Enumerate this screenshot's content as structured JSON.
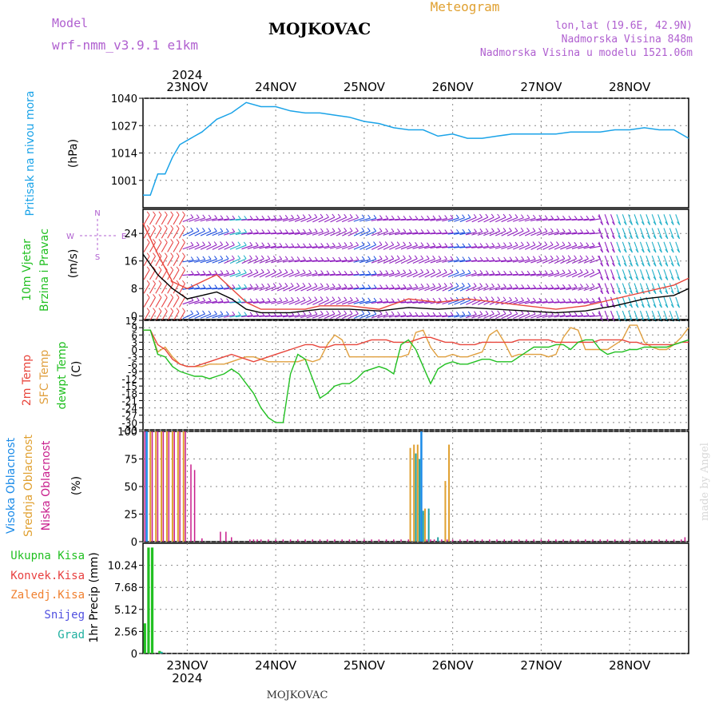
{
  "header": {
    "model_label": "Model",
    "model_name": "wrf-nmm_v3.9.1  e1km",
    "station": "MOJKOVAC",
    "product": "Meteogram",
    "coords": "lon,lat (19.6E, 42.9N)",
    "elevation": "Nadmorska Visina 848m",
    "model_elevation": "Nadmorska Visina u modelu 1521.06m"
  },
  "footer": {
    "station": "MOJKOVAC",
    "watermark": "made by Angel"
  },
  "colors": {
    "pressure": "#1aa3e8",
    "temp": "#e8463c",
    "sfc": "#e0a040",
    "dew": "#22c022",
    "high_cloud": "#1a8ae8",
    "mid_cloud": "#e0a030",
    "low_cloud": "#c81e8c",
    "label_purple": "#b060d0",
    "wind_purple": "#9020c0",
    "wind_blue": "#2050e0",
    "wind_cyan": "#20b0c8"
  },
  "chart_data": [
    {
      "id": "pressure",
      "type": "line",
      "title_labels": [
        "Pritisak na nivou mora"
      ],
      "ylabel": "(hPa)",
      "ylim": [
        988,
        1040
      ],
      "yticks": [
        "1040",
        "1027",
        "1014",
        "1001"
      ],
      "x_ticks": [
        "23NOV",
        "24NOV",
        "25NOV",
        "26NOV",
        "27NOV",
        "28NOV"
      ],
      "x_year": "2024",
      "x_unit": "hours since 22NOV 12:00",
      "x": [
        0,
        2,
        4,
        6,
        8,
        10,
        12,
        14,
        16,
        18,
        20,
        24,
        28,
        32,
        36,
        40,
        44,
        48,
        52,
        56,
        60,
        64,
        68,
        72,
        76,
        80,
        84,
        88,
        92,
        96,
        100,
        104,
        108,
        112,
        116,
        120,
        124,
        128,
        132,
        136,
        140,
        144,
        148
      ],
      "series": [
        {
          "values": [
            994,
            994,
            1004,
            1004,
            1012,
            1018,
            1020,
            1022,
            1024,
            1027,
            1030,
            1033,
            1038,
            1036,
            1036,
            1034,
            1033,
            1033,
            1032,
            1031,
            1029,
            1028,
            1026,
            1025,
            1025,
            1022,
            1023,
            1021,
            1021,
            1022,
            1023,
            1023,
            1023,
            1023,
            1024,
            1024,
            1024,
            1025,
            1025,
            1026,
            1025,
            1025,
            1021
          ]
        }
      ]
    },
    {
      "id": "wind",
      "type": "line",
      "title_labels": [
        "10m Vjetar",
        "Brzina i Pravac"
      ],
      "ylabel": "(m/s)",
      "ylim": [
        -1,
        31
      ],
      "yticks": [
        "24",
        "16",
        "8",
        "0"
      ],
      "x": [
        0,
        4,
        8,
        12,
        16,
        20,
        24,
        28,
        32,
        36,
        40,
        44,
        48,
        56,
        64,
        72,
        80,
        88,
        96,
        104,
        112,
        120,
        128,
        136,
        144,
        148
      ],
      "series": [
        {
          "name": "wind speed",
          "values": [
            18,
            12,
            8,
            5,
            6,
            7,
            5,
            2,
            1,
            1,
            1,
            1.5,
            2,
            2,
            1.5,
            2.5,
            2,
            2.5,
            2,
            1.5,
            1,
            1.5,
            3,
            5,
            6,
            8
          ]
        },
        {
          "name": "wind gust",
          "values": [
            27,
            18,
            10,
            8,
            10,
            12,
            8,
            4,
            2,
            2,
            2,
            2,
            3,
            3,
            2,
            5,
            4,
            5,
            4,
            3,
            2,
            3,
            5,
            7,
            9,
            11
          ]
        }
      ],
      "compass": [
        "N",
        "W",
        "E",
        "S"
      ]
    },
    {
      "id": "temperature",
      "type": "line",
      "title_labels": [
        "2m Temp",
        "SFC Temp",
        "dewpt Temp"
      ],
      "ylabel": "(C)",
      "ylim": [
        -33,
        12
      ],
      "yticks": [
        "12",
        "9",
        "6",
        "3",
        "0",
        "-3",
        "-6",
        "-9",
        "-12",
        "-15",
        "-18",
        "-21",
        "-24",
        "-27",
        "-30",
        "-33"
      ],
      "x": [
        0,
        2,
        4,
        6,
        8,
        10,
        12,
        14,
        16,
        18,
        20,
        22,
        24,
        26,
        28,
        30,
        32,
        34,
        36,
        38,
        40,
        42,
        44,
        46,
        48,
        50,
        52,
        54,
        56,
        58,
        60,
        62,
        64,
        66,
        68,
        70,
        72,
        74,
        76,
        78,
        80,
        82,
        84,
        86,
        88,
        90,
        92,
        94,
        96,
        98,
        100,
        102,
        104,
        106,
        108,
        110,
        112,
        114,
        116,
        118,
        120,
        122,
        124,
        126,
        128,
        130,
        132,
        134,
        136,
        138,
        140,
        142,
        144,
        146,
        148
      ],
      "series": [
        {
          "name": "2m Temp",
          "values": [
            8,
            8,
            2,
            0,
            -4,
            -6,
            -7,
            -7,
            -6,
            -5,
            -4,
            -3,
            -2,
            -3,
            -4,
            -5,
            -4,
            -3,
            -2,
            -1,
            0,
            1,
            2,
            2,
            1,
            1,
            2,
            2,
            2,
            2,
            3,
            4,
            4,
            4,
            3,
            3,
            3,
            4,
            5,
            5,
            4,
            3,
            3,
            2,
            2,
            2,
            3,
            3,
            3,
            3,
            3,
            4,
            4,
            4,
            4,
            4,
            3,
            3,
            3,
            3,
            3,
            3,
            4,
            4,
            4,
            4,
            3,
            3,
            2,
            2,
            2,
            2,
            2,
            3,
            3
          ]
        },
        {
          "name": "SFC Temp",
          "values": [
            8,
            8,
            -1,
            1,
            -3,
            -6,
            -7,
            -7,
            -7,
            -6,
            -6,
            -6,
            -5,
            -4,
            -3,
            -3,
            -4,
            -5,
            -5,
            -5,
            -5,
            -5,
            -4,
            -5,
            -4,
            2,
            6,
            4,
            -3,
            -3,
            -3,
            -3,
            -3,
            -3,
            -3,
            -3,
            -2,
            7,
            8,
            1,
            -3,
            -3,
            -2,
            -3,
            -3,
            -2,
            -1,
            6,
            8,
            3,
            -3,
            -2,
            -2,
            -2,
            -2,
            -3,
            -2,
            5,
            9,
            8,
            0,
            0,
            0,
            0,
            2,
            4,
            10,
            10,
            3,
            1,
            0,
            0,
            2,
            5,
            9
          ]
        },
        {
          "name": "dewpt Temp",
          "values": [
            8,
            8,
            -2,
            -3,
            -7,
            -9,
            -10,
            -11,
            -11,
            -12,
            -11,
            -10,
            -8,
            -10,
            -14,
            -18,
            -24,
            -28,
            -30,
            -30,
            -10,
            -2,
            -4,
            -12,
            -20,
            -18,
            -15,
            -14,
            -14,
            -12,
            -9,
            -8,
            -7,
            -8,
            -10,
            2,
            4,
            0,
            -7,
            -14,
            -8,
            -6,
            -5,
            -6,
            -6,
            -5,
            -4,
            -4,
            -5,
            -5,
            -5,
            -3,
            -1,
            1,
            1,
            1,
            2,
            2,
            0,
            3,
            4,
            4,
            0,
            -2,
            -1,
            -1,
            0,
            0,
            1,
            1,
            1,
            1,
            2,
            3,
            4
          ]
        }
      ]
    },
    {
      "id": "cloud",
      "type": "bar",
      "title_labels": [
        "Visoka Oblacnost",
        "Srednja Oblacnost",
        "Niska Oblacnost"
      ],
      "ylabel": "(%)",
      "ylim": [
        0,
        100
      ],
      "yticks": [
        "100",
        "75",
        "50",
        "25",
        "0"
      ],
      "series": [
        {
          "name": "Visoka Oblacnost",
          "x": [
            1,
            75.5
          ],
          "values": [
            100,
            100
          ]
        },
        {
          "name": "Srednja Oblacnost",
          "x": [
            2,
            3.5,
            5,
            6.5,
            8,
            9.5,
            11,
            72.5,
            73.5,
            74.5,
            76.5,
            82,
            83
          ],
          "values": [
            100,
            100,
            100,
            100,
            100,
            100,
            100,
            85,
            88,
            88,
            30,
            55,
            88
          ]
        },
        {
          "name": "Niska Oblacnost",
          "x": [
            0.5,
            2.5,
            4,
            5.5,
            7,
            8.5,
            10,
            11.5,
            13,
            14,
            16,
            21,
            22.5,
            24,
            29,
            30,
            31,
            32,
            34,
            36,
            38,
            40,
            42,
            44,
            46,
            48,
            50,
            52,
            54,
            56,
            58,
            60,
            62,
            64,
            66,
            68,
            70,
            72,
            74,
            76,
            77,
            78,
            79,
            80,
            81,
            82.5,
            84,
            86,
            88,
            90,
            92,
            94,
            96,
            98,
            100,
            102,
            104,
            106,
            108,
            110,
            112,
            114,
            116,
            118,
            120,
            122,
            124,
            126,
            128,
            130,
            132,
            134,
            136,
            138,
            140,
            142,
            144,
            146,
            147
          ],
          "values": [
            100,
            100,
            100,
            100,
            100,
            100,
            100,
            100,
            70,
            65,
            3,
            9,
            9,
            4,
            2,
            2,
            2,
            2,
            2,
            2,
            2,
            2,
            2,
            2,
            2,
            2,
            2,
            2,
            2,
            2,
            2,
            2,
            2,
            2,
            2,
            2,
            2,
            2,
            2,
            2,
            2,
            2,
            2,
            2,
            2,
            2,
            2,
            2,
            2,
            2,
            2,
            2,
            2,
            2,
            2,
            2,
            2,
            2,
            2,
            2,
            2,
            2,
            2,
            2,
            2,
            2,
            2,
            2,
            2,
            2,
            2,
            2,
            2,
            2,
            2,
            2,
            2,
            2,
            4
          ]
        },
        {
          "name": "Niska Oblacnost (extra)",
          "x": [
            74,
            75,
            76,
            77.5,
            80
          ],
          "values": [
            80,
            75,
            28,
            30,
            4
          ]
        }
      ]
    },
    {
      "id": "precip",
      "type": "bar",
      "title_labels": [
        "Ukupna Kisa",
        "Konvek.Kisa",
        "Zaledj.Kisa",
        "Snijeg",
        "Grad"
      ],
      "ylabel": "1hr Precip (mm)",
      "ylim": [
        0,
        12.8
      ],
      "yticks": [
        "10.24",
        "7.68",
        "5.12",
        "2.56",
        "0"
      ],
      "series": [
        {
          "name": "Ukupna Kisa",
          "x": [
            0.5,
            1.5,
            2.5,
            4.5
          ],
          "values": [
            3.5,
            12.3,
            12.3,
            0.3
          ]
        },
        {
          "name": "Grad",
          "x": [
            5
          ],
          "values": [
            0.2
          ]
        }
      ]
    }
  ]
}
